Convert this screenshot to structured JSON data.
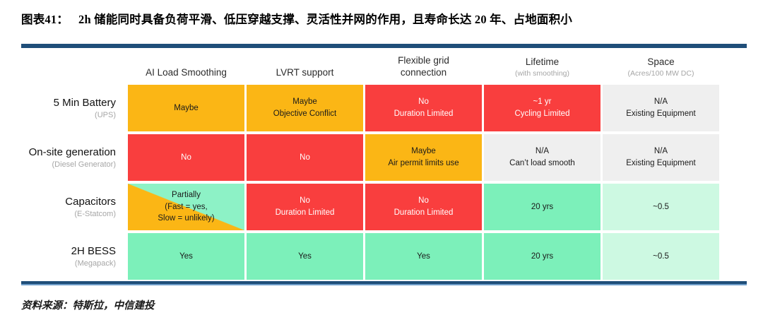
{
  "title": {
    "prefix": "图表41：",
    "text": "2h 储能同时具备负荷平滑、低压穿越支撑、灵活性并网的作用，且寿命长达 20 年、占地面积小"
  },
  "source": "资料来源：特斯拉，中信建投",
  "colors": {
    "navy": "#1F4E79",
    "navy_light": "#6E9DC9",
    "yellow": "#FBB615",
    "red": "#F93E3E",
    "green": "#7CF0BA",
    "green_light": "#CDF9E2",
    "split_green": "#8DF2C6",
    "gray": "#EFEFEF",
    "sub_gray": "#A6A6A6"
  },
  "chart_data": {
    "type": "table",
    "title": "2h 储能同时具备负荷平滑、低压穿越支撑、灵活性并网的作用，且寿命长达 20 年、占地面积小",
    "columns": [
      {
        "line1": "AI Load Smoothing",
        "line2": "",
        "sub": ""
      },
      {
        "line1": "LVRT support",
        "line2": "",
        "sub": ""
      },
      {
        "line1": "Flexible grid",
        "line2": "connection",
        "sub": ""
      },
      {
        "line1": "Lifetime",
        "line2": "",
        "sub": "(with smoothing)"
      },
      {
        "line1": "Space",
        "line2": "",
        "sub": "(Acres/100 MW DC)"
      }
    ],
    "rows": [
      {
        "label": "5 Min Battery",
        "sub": "(UPS)",
        "cells": [
          {
            "type": "yellow",
            "lines": [
              "Maybe"
            ]
          },
          {
            "type": "yellow",
            "lines": [
              "Maybe",
              "Objective Conflict"
            ]
          },
          {
            "type": "red",
            "lines": [
              "No",
              "Duration Limited"
            ]
          },
          {
            "type": "red",
            "lines": [
              "~1 yr",
              "Cycling Limited"
            ]
          },
          {
            "type": "gray",
            "lines": [
              "N/A",
              "Existing Equipment"
            ]
          }
        ]
      },
      {
        "label": "On-site generation",
        "sub": "(Diesel Generator)",
        "cells": [
          {
            "type": "red",
            "lines": [
              "No"
            ]
          },
          {
            "type": "red",
            "lines": [
              "No"
            ]
          },
          {
            "type": "yellow",
            "lines": [
              "Maybe",
              "Air permit limits use"
            ]
          },
          {
            "type": "gray",
            "lines": [
              "N/A",
              "Can’t load smooth"
            ]
          },
          {
            "type": "gray",
            "lines": [
              "N/A",
              "Existing Equipment"
            ]
          }
        ]
      },
      {
        "label": "Capacitors",
        "sub": "(E-Statcom)",
        "cells": [
          {
            "type": "split",
            "lines": [
              "Partially",
              "(Fast = yes,",
              "Slow = unlikely)"
            ]
          },
          {
            "type": "red",
            "lines": [
              "No",
              "Duration Limited"
            ]
          },
          {
            "type": "red",
            "lines": [
              "No",
              "Duration Limited"
            ]
          },
          {
            "type": "green",
            "lines": [
              "20 yrs"
            ]
          },
          {
            "type": "greenlight",
            "lines": [
              "~0.5"
            ]
          }
        ]
      },
      {
        "label": "2H BESS",
        "sub": "(Megapack)",
        "cells": [
          {
            "type": "green",
            "lines": [
              "Yes"
            ]
          },
          {
            "type": "green",
            "lines": [
              "Yes"
            ]
          },
          {
            "type": "green",
            "lines": [
              "Yes"
            ]
          },
          {
            "type": "green",
            "lines": [
              "20 yrs"
            ]
          },
          {
            "type": "greenlight",
            "lines": [
              "~0.5"
            ]
          }
        ]
      }
    ]
  }
}
